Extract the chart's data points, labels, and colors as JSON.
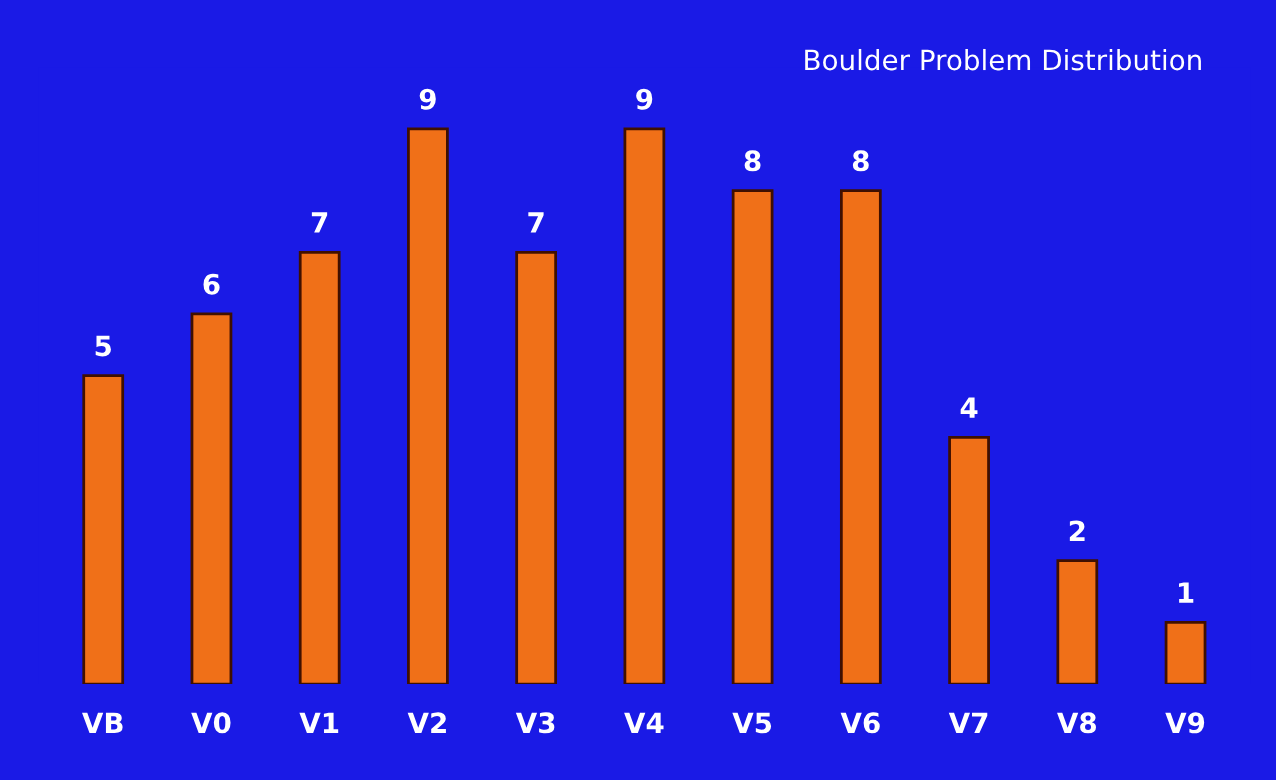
{
  "chart_data": {
    "type": "bar",
    "title": "Boulder Problem Distribution",
    "categories": [
      "VB",
      "V0",
      "V1",
      "V2",
      "V3",
      "V4",
      "V5",
      "V6",
      "V7",
      "V8",
      "V9"
    ],
    "values": [
      5,
      6,
      7,
      9,
      7,
      9,
      8,
      8,
      4,
      2,
      1
    ],
    "color": "#f07018",
    "data_labels": true,
    "grid": false,
    "legend": false
  }
}
